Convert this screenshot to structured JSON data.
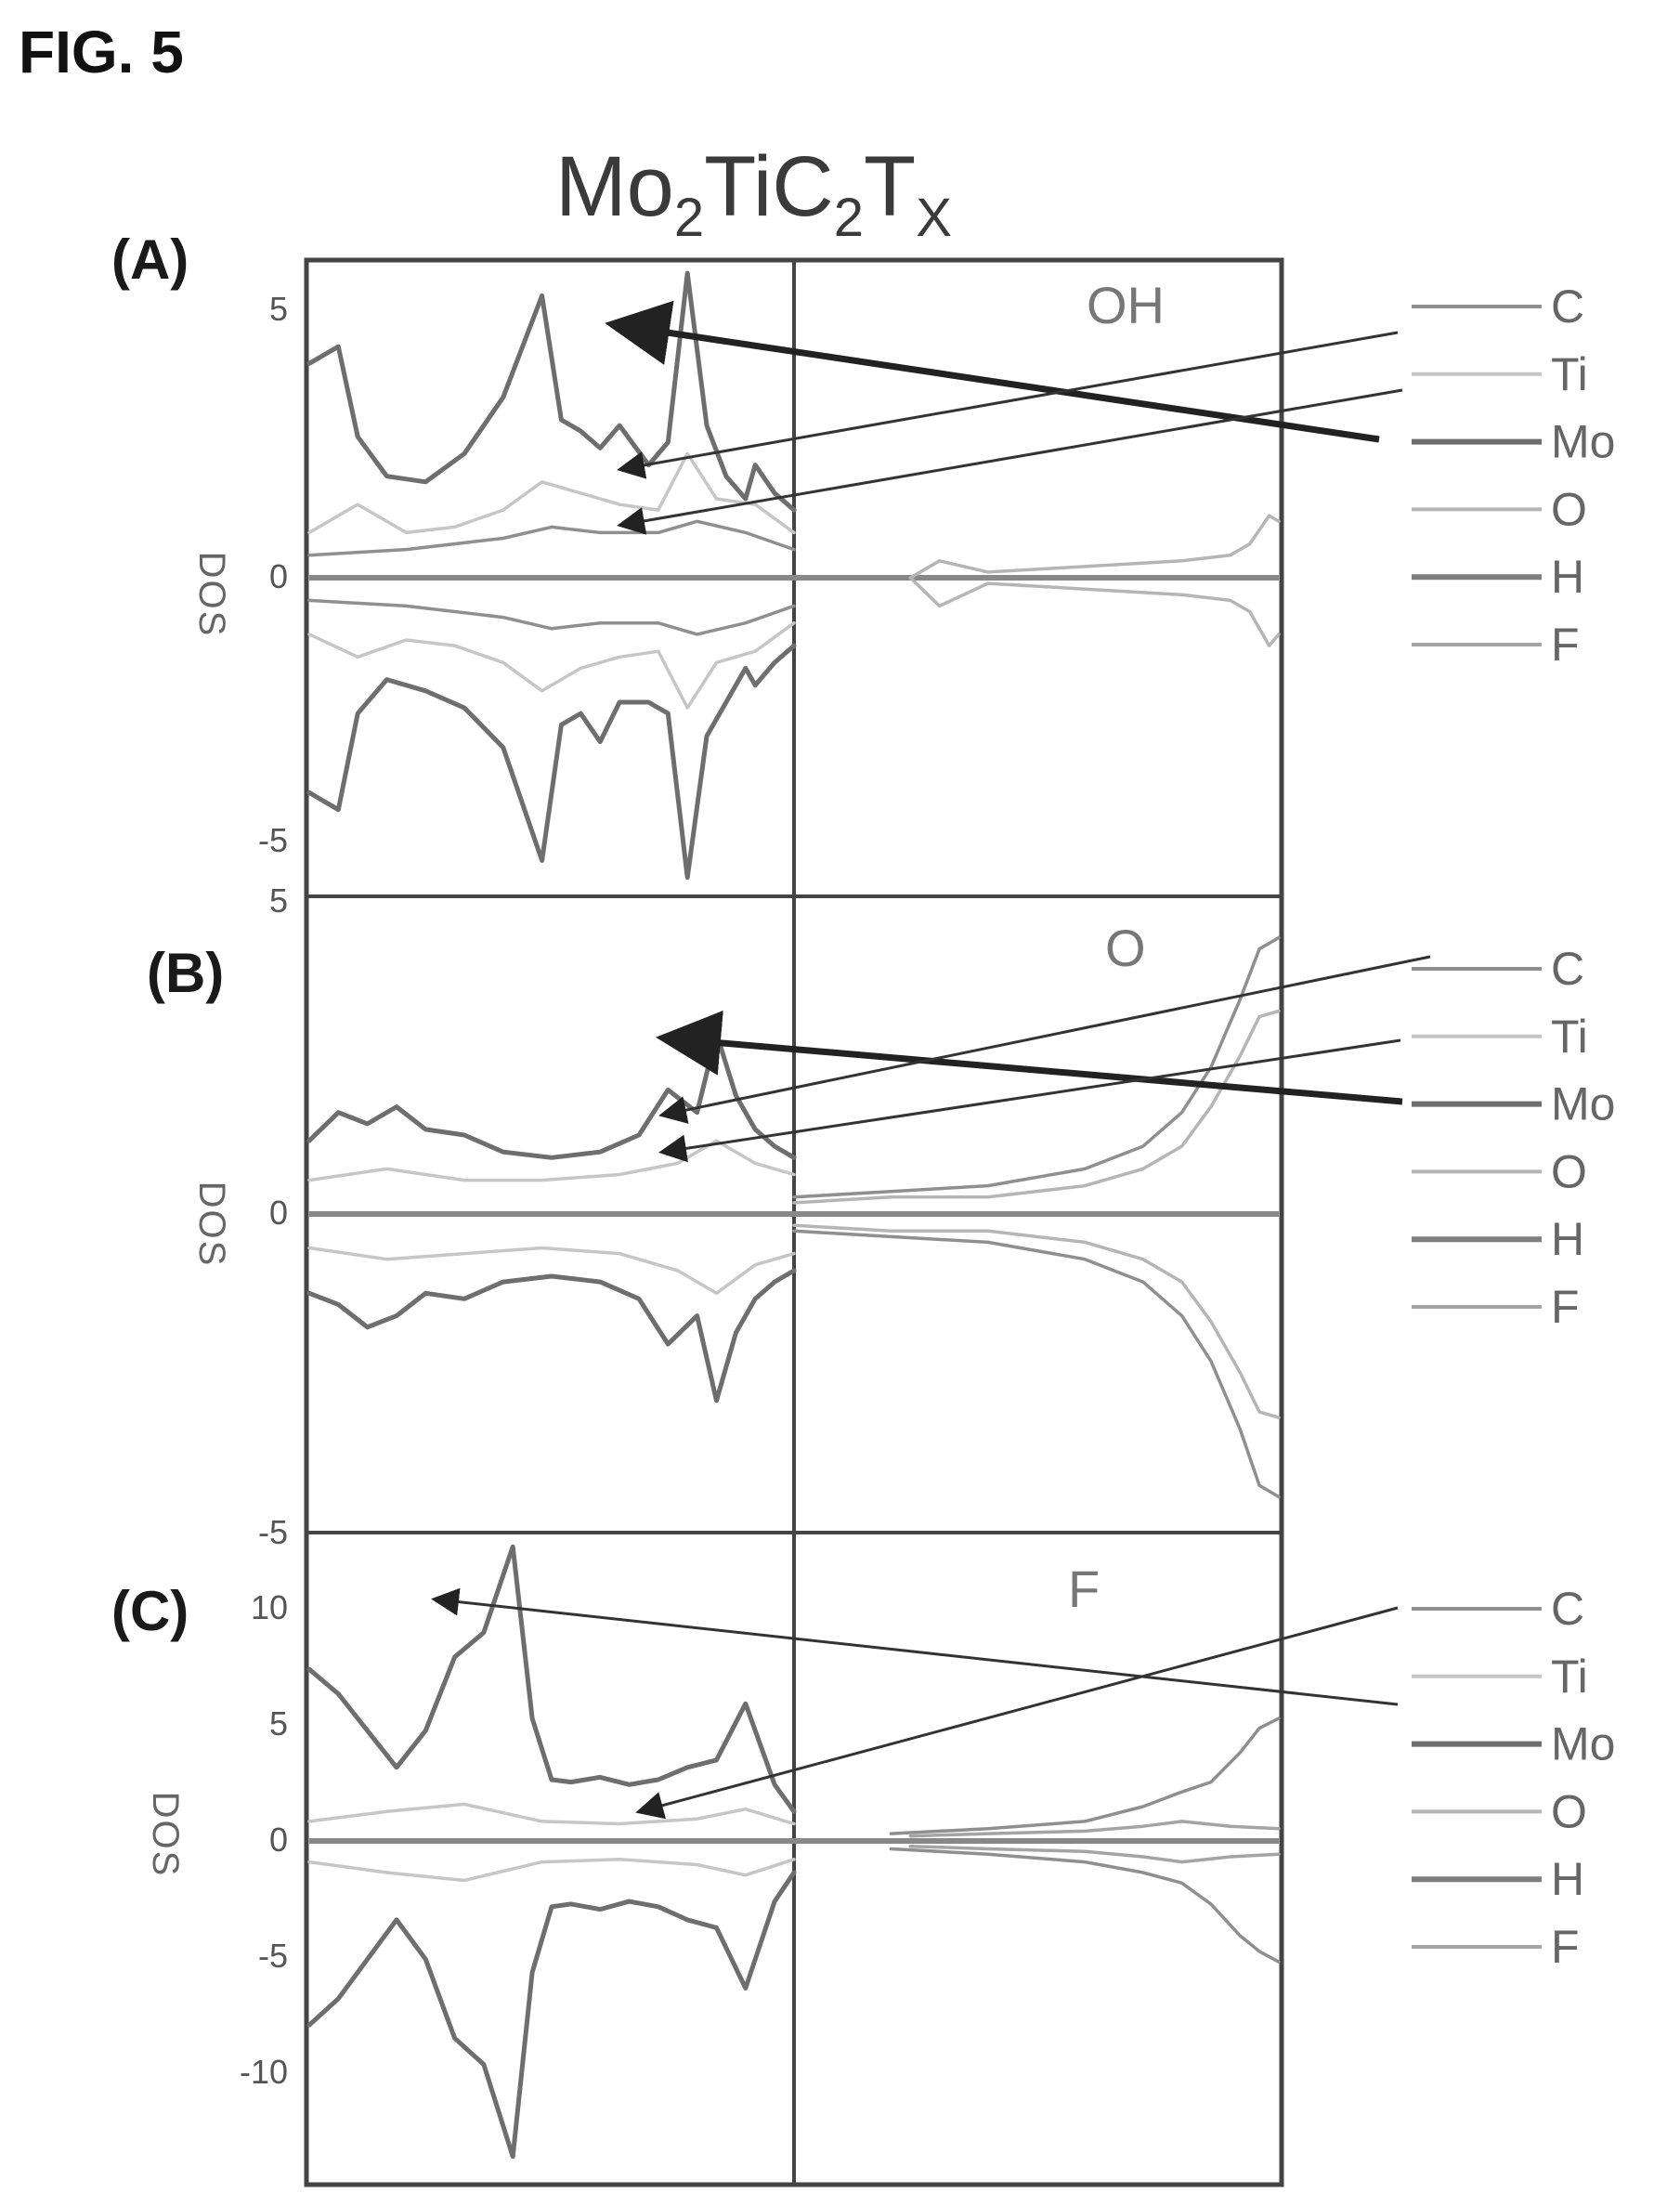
{
  "figure": {
    "label": "FIG. 5",
    "title": {
      "part1": "Mo",
      "sub1": "2",
      "part2": "TiC",
      "sub2": "2",
      "part3": "T",
      "sub3": "X"
    },
    "y_axis_label": "DOS"
  },
  "series_colors": {
    "C": "#8f8f8f",
    "Ti": "#c6c6c6",
    "Mo": "#6e6e6e",
    "O": "#b5b5b5",
    "H": "#7e7e7e",
    "F": "#a4a4a4"
  },
  "chart_data": [
    {
      "type": "line",
      "panel": "(A)",
      "termination": "OH",
      "ylabel": "DOS",
      "ylim": [
        -5.6,
        5.6
      ],
      "yticks": [
        "5",
        "0",
        "-5"
      ],
      "xlim": [
        0,
        1
      ],
      "legend": [
        "C",
        "Ti",
        "Mo",
        "O",
        "H",
        "F"
      ],
      "legend_placement": "right",
      "series": [
        {
          "name": "Mo",
          "x": [
            0,
            0.03,
            0.05,
            0.08,
            0.12,
            0.16,
            0.2,
            0.24,
            0.26,
            0.28,
            0.3,
            0.32,
            0.35,
            0.37,
            0.39,
            0.41,
            0.43,
            0.45,
            0.46,
            0.48,
            0.5
          ],
          "y": [
            3.8,
            4.1,
            2.5,
            1.8,
            1.7,
            2.2,
            3.2,
            5.0,
            2.8,
            2.6,
            2.3,
            2.7,
            2.0,
            2.4,
            5.4,
            2.7,
            1.8,
            1.4,
            2.0,
            1.5,
            1.2
          ]
        },
        {
          "name": "Mo",
          "x": [
            0,
            0.03,
            0.05,
            0.08,
            0.12,
            0.16,
            0.2,
            0.24,
            0.26,
            0.28,
            0.3,
            0.32,
            0.35,
            0.37,
            0.39,
            0.41,
            0.43,
            0.45,
            0.46,
            0.48,
            0.5
          ],
          "y": [
            -3.8,
            -4.1,
            -2.4,
            -1.8,
            -2.0,
            -2.3,
            -3.0,
            -5.0,
            -2.6,
            -2.4,
            -2.9,
            -2.2,
            -2.2,
            -2.4,
            -5.3,
            -2.8,
            -2.2,
            -1.6,
            -1.9,
            -1.5,
            -1.2
          ]
        },
        {
          "name": "Ti",
          "x": [
            0,
            0.05,
            0.1,
            0.15,
            0.2,
            0.24,
            0.28,
            0.32,
            0.36,
            0.39,
            0.42,
            0.46,
            0.5
          ],
          "y": [
            0.8,
            1.3,
            0.8,
            0.9,
            1.2,
            1.7,
            1.5,
            1.3,
            1.2,
            2.2,
            1.4,
            1.3,
            0.8
          ]
        },
        {
          "name": "Ti",
          "x": [
            0,
            0.05,
            0.1,
            0.15,
            0.2,
            0.24,
            0.28,
            0.32,
            0.36,
            0.39,
            0.42,
            0.46,
            0.5
          ],
          "y": [
            -1.0,
            -1.4,
            -1.1,
            -1.2,
            -1.5,
            -2.0,
            -1.6,
            -1.4,
            -1.3,
            -2.3,
            -1.5,
            -1.3,
            -0.8
          ]
        },
        {
          "name": "C",
          "x": [
            0,
            0.1,
            0.2,
            0.25,
            0.3,
            0.36,
            0.4,
            0.45,
            0.5
          ],
          "y": [
            0.4,
            0.5,
            0.7,
            0.9,
            0.8,
            0.8,
            1.0,
            0.8,
            0.5
          ]
        },
        {
          "name": "C",
          "x": [
            0,
            0.1,
            0.2,
            0.25,
            0.3,
            0.36,
            0.4,
            0.45,
            0.5
          ],
          "y": [
            -0.4,
            -0.5,
            -0.7,
            -0.9,
            -0.8,
            -0.8,
            -1.0,
            -0.8,
            -0.5
          ]
        },
        {
          "name": "O",
          "x": [
            0.62,
            0.65,
            0.7,
            0.8,
            0.9,
            0.95,
            0.97,
            0.99,
            1.0
          ],
          "y": [
            0.0,
            0.3,
            0.1,
            0.2,
            0.3,
            0.4,
            0.6,
            1.1,
            1.0
          ]
        },
        {
          "name": "O",
          "x": [
            0.62,
            0.65,
            0.7,
            0.8,
            0.9,
            0.95,
            0.97,
            0.99,
            1.0
          ],
          "y": [
            0.0,
            -0.5,
            -0.1,
            -0.2,
            -0.3,
            -0.4,
            -0.6,
            -1.2,
            -1.0
          ]
        }
      ]
    },
    {
      "type": "line",
      "panel": "(B)",
      "termination": "O",
      "ylabel": "DOS",
      "ylim": [
        -5.6,
        5.6
      ],
      "yticks": [
        "5",
        "0",
        "-5"
      ],
      "xlim": [
        0,
        1
      ],
      "legend": [
        "C",
        "Ti",
        "Mo",
        "O",
        "H",
        "F"
      ],
      "legend_placement": "right",
      "series": [
        {
          "name": "Mo",
          "x": [
            0,
            0.03,
            0.06,
            0.09,
            0.12,
            0.16,
            0.2,
            0.25,
            0.3,
            0.34,
            0.37,
            0.4,
            0.42,
            0.44,
            0.46,
            0.48,
            0.5
          ],
          "y": [
            1.3,
            1.8,
            1.6,
            1.9,
            1.5,
            1.4,
            1.1,
            1.0,
            1.1,
            1.4,
            2.2,
            1.8,
            3.2,
            2.1,
            1.5,
            1.2,
            1.0
          ]
        },
        {
          "name": "Mo",
          "x": [
            0,
            0.03,
            0.06,
            0.09,
            0.12,
            0.16,
            0.2,
            0.25,
            0.3,
            0.34,
            0.37,
            0.4,
            0.42,
            0.44,
            0.46,
            0.48,
            0.5
          ],
          "y": [
            -1.4,
            -1.6,
            -2.0,
            -1.8,
            -1.4,
            -1.5,
            -1.2,
            -1.1,
            -1.2,
            -1.5,
            -2.3,
            -1.8,
            -3.3,
            -2.1,
            -1.5,
            -1.2,
            -1.0
          ]
        },
        {
          "name": "Ti",
          "x": [
            0,
            0.08,
            0.16,
            0.24,
            0.32,
            0.38,
            0.42,
            0.46,
            0.5
          ],
          "y": [
            0.6,
            0.8,
            0.6,
            0.6,
            0.7,
            0.9,
            1.3,
            0.9,
            0.7
          ]
        },
        {
          "name": "Ti",
          "x": [
            0,
            0.08,
            0.16,
            0.24,
            0.32,
            0.38,
            0.42,
            0.46,
            0.5
          ],
          "y": [
            -0.6,
            -0.8,
            -0.7,
            -0.6,
            -0.7,
            -1.0,
            -1.4,
            -0.9,
            -0.7
          ]
        },
        {
          "name": "C",
          "x": [
            0.5,
            0.6,
            0.7,
            0.8,
            0.86,
            0.9,
            0.93,
            0.96,
            0.98,
            1.0
          ],
          "y": [
            0.3,
            0.4,
            0.5,
            0.8,
            1.2,
            1.8,
            2.6,
            3.8,
            4.7,
            4.9
          ]
        },
        {
          "name": "C",
          "x": [
            0.5,
            0.6,
            0.7,
            0.8,
            0.86,
            0.9,
            0.93,
            0.96,
            0.98,
            1.0
          ],
          "y": [
            -0.3,
            -0.4,
            -0.5,
            -0.8,
            -1.2,
            -1.8,
            -2.6,
            -3.8,
            -4.8,
            -5.0
          ]
        },
        {
          "name": "O",
          "x": [
            0.5,
            0.6,
            0.7,
            0.8,
            0.86,
            0.9,
            0.93,
            0.96,
            0.98,
            1.0
          ],
          "y": [
            0.2,
            0.3,
            0.3,
            0.5,
            0.8,
            1.2,
            1.9,
            2.8,
            3.5,
            3.6
          ]
        },
        {
          "name": "O",
          "x": [
            0.5,
            0.6,
            0.7,
            0.8,
            0.86,
            0.9,
            0.93,
            0.96,
            0.98,
            1.0
          ],
          "y": [
            -0.2,
            -0.3,
            -0.3,
            -0.5,
            -0.8,
            -1.2,
            -1.9,
            -2.8,
            -3.5,
            -3.6
          ]
        }
      ]
    },
    {
      "type": "line",
      "panel": "(C)",
      "termination": "F",
      "ylabel": "DOS",
      "ylim": [
        -13,
        12.5
      ],
      "yticks": [
        "10",
        "5",
        "0",
        "-5",
        "-10"
      ],
      "xlim": [
        0,
        1
      ],
      "legend": [
        "C",
        "Ti",
        "Mo",
        "O",
        "H",
        "F"
      ],
      "legend_placement": "right",
      "series": [
        {
          "name": "Mo",
          "x": [
            0,
            0.03,
            0.06,
            0.09,
            0.12,
            0.15,
            0.18,
            0.21,
            0.23,
            0.25,
            0.27,
            0.3,
            0.33,
            0.36,
            0.39,
            0.42,
            0.45,
            0.48,
            0.5
          ],
          "y": [
            7.0,
            6.0,
            4.5,
            3.0,
            4.5,
            7.5,
            8.5,
            12.0,
            5.0,
            2.5,
            2.4,
            2.6,
            2.3,
            2.5,
            3.0,
            3.3,
            5.6,
            2.3,
            1.2
          ]
        },
        {
          "name": "Mo",
          "x": [
            0,
            0.03,
            0.06,
            0.09,
            0.12,
            0.15,
            0.18,
            0.21,
            0.23,
            0.25,
            0.27,
            0.3,
            0.33,
            0.36,
            0.39,
            0.42,
            0.45,
            0.48,
            0.5
          ],
          "y": [
            -7.0,
            -6.0,
            -4.5,
            -3.0,
            -4.5,
            -7.5,
            -8.5,
            -12.0,
            -5.0,
            -2.5,
            -2.4,
            -2.6,
            -2.3,
            -2.5,
            -3.0,
            -3.3,
            -5.6,
            -2.3,
            -1.2
          ]
        },
        {
          "name": "Ti",
          "x": [
            0,
            0.08,
            0.16,
            0.24,
            0.32,
            0.4,
            0.45,
            0.5
          ],
          "y": [
            0.8,
            1.2,
            1.5,
            0.8,
            0.7,
            0.9,
            1.3,
            0.7
          ]
        },
        {
          "name": "Ti",
          "x": [
            0,
            0.08,
            0.16,
            0.24,
            0.32,
            0.4,
            0.45,
            0.5
          ],
          "y": [
            -0.8,
            -1.2,
            -1.5,
            -0.8,
            -0.7,
            -0.9,
            -1.3,
            -0.7
          ]
        },
        {
          "name": "C",
          "x": [
            0.6,
            0.7,
            0.8,
            0.86,
            0.9,
            0.93,
            0.96,
            0.98,
            1.0
          ],
          "y": [
            0.3,
            0.5,
            0.8,
            1.4,
            2.0,
            2.4,
            3.6,
            4.6,
            5.0
          ]
        },
        {
          "name": "C",
          "x": [
            0.6,
            0.7,
            0.8,
            0.86,
            0.9,
            0.93,
            0.96,
            0.98,
            1.0
          ],
          "y": [
            -0.3,
            -0.5,
            -0.8,
            -1.2,
            -1.6,
            -2.4,
            -3.6,
            -4.2,
            -4.6
          ]
        },
        {
          "name": "F",
          "x": [
            0.62,
            0.7,
            0.8,
            0.86,
            0.9,
            0.95,
            1.0
          ],
          "y": [
            0.2,
            0.3,
            0.4,
            0.6,
            0.8,
            0.6,
            0.5
          ]
        },
        {
          "name": "F",
          "x": [
            0.62,
            0.7,
            0.8,
            0.86,
            0.9,
            0.95,
            1.0
          ],
          "y": [
            -0.2,
            -0.3,
            -0.4,
            -0.6,
            -0.8,
            -0.6,
            -0.5
          ]
        }
      ]
    }
  ]
}
